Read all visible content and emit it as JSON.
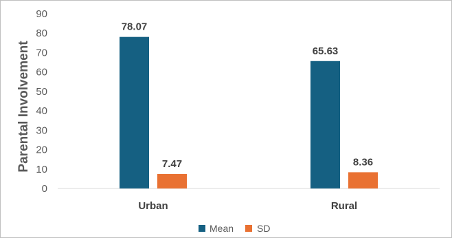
{
  "chart_data": {
    "type": "bar",
    "categories": [
      "Urban",
      "Rural"
    ],
    "series": [
      {
        "name": "Mean",
        "values": [
          78.07,
          65.63
        ],
        "labels": [
          "78.07",
          "65.63"
        ],
        "color": "#156082"
      },
      {
        "name": "SD",
        "values": [
          7.47,
          8.36
        ],
        "labels": [
          "7.47",
          "8.36"
        ],
        "color": "#E97132"
      }
    ],
    "ylabel": "Parental Involvement",
    "xlabel": "",
    "ylim": [
      0,
      90
    ],
    "yticks": [
      "0",
      "10",
      "20",
      "30",
      "40",
      "50",
      "60",
      "70",
      "80",
      "90"
    ],
    "grid": false,
    "legend": "bottom"
  }
}
